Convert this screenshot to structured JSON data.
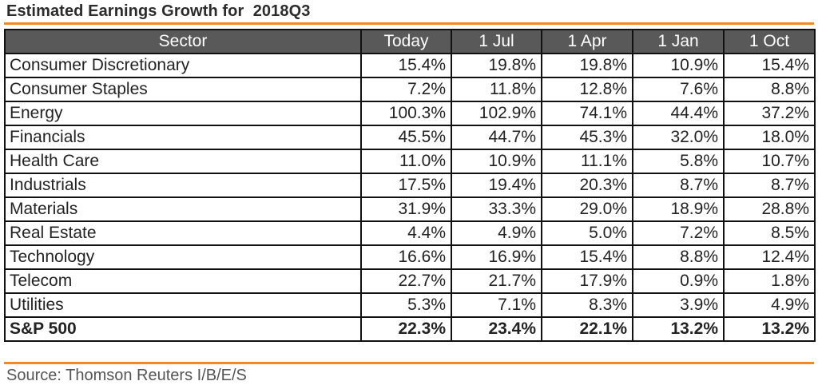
{
  "title": "Estimated Earnings Growth for  2018Q3",
  "accent_color": "#f08a24",
  "header_color": "#595959",
  "columns": [
    "Sector",
    "Today",
    "1 Jul",
    "1 Apr",
    "1 Jan",
    "1 Oct"
  ],
  "rows": [
    [
      "Consumer Discretionary",
      "15.4%",
      "19.8%",
      "19.8%",
      "10.9%",
      "15.4%"
    ],
    [
      "Consumer Staples",
      "7.2%",
      "11.8%",
      "12.8%",
      "7.6%",
      "8.8%"
    ],
    [
      "Energy",
      "100.3%",
      "102.9%",
      "74.1%",
      "44.4%",
      "37.2%"
    ],
    [
      "Financials",
      "45.5%",
      "44.7%",
      "45.3%",
      "32.0%",
      "18.0%"
    ],
    [
      "Health Care",
      "11.0%",
      "10.9%",
      "11.1%",
      "5.8%",
      "10.7%"
    ],
    [
      "Industrials",
      "17.5%",
      "19.4%",
      "20.3%",
      "8.7%",
      "8.7%"
    ],
    [
      "Materials",
      "31.9%",
      "33.3%",
      "29.0%",
      "18.9%",
      "28.8%"
    ],
    [
      "Real Estate",
      "4.4%",
      "4.9%",
      "5.0%",
      "7.2%",
      "8.5%"
    ],
    [
      "Technology",
      "16.6%",
      "16.9%",
      "15.4%",
      "8.8%",
      "12.4%"
    ],
    [
      "Telecom",
      "22.7%",
      "21.7%",
      "17.9%",
      "0.9%",
      "1.8%"
    ],
    [
      "Utilities",
      "5.3%",
      "7.1%",
      "8.3%",
      "3.9%",
      "4.9%"
    ]
  ],
  "total_row": [
    "S&P 500",
    "22.3%",
    "23.4%",
    "22.1%",
    "13.2%",
    "13.2%"
  ],
  "source": "Source: Thomson Reuters I/B/E/S"
}
